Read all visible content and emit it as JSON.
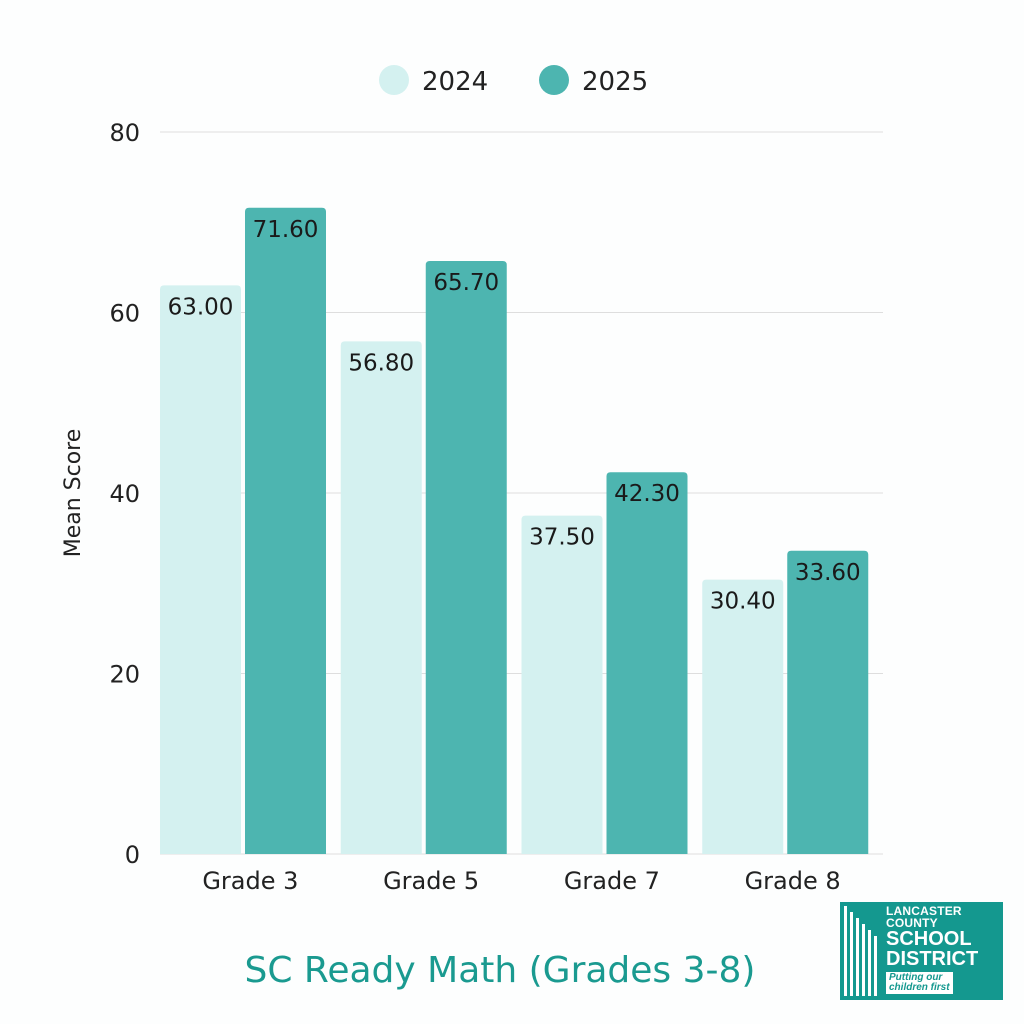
{
  "chart_data": {
    "type": "bar",
    "title": "SC Ready Math (Grades 3-8)",
    "xlabel": "",
    "ylabel": "Mean Score",
    "ylim": [
      0,
      80
    ],
    "yticks": [
      0,
      20,
      40,
      60,
      80
    ],
    "grid": true,
    "legend_position": "top-center",
    "categories": [
      "Grade 3",
      "Grade 5",
      "Grade 7",
      "Grade 8"
    ],
    "series": [
      {
        "name": "2024",
        "color": "#d4f1f0",
        "values": [
          63.0,
          56.8,
          37.5,
          30.4
        ],
        "labels": [
          "63.00",
          "56.80",
          "37.50",
          "30.40"
        ]
      },
      {
        "name": "2025",
        "color": "#4db5b0",
        "values": [
          71.6,
          65.7,
          42.3,
          33.6
        ],
        "labels": [
          "71.60",
          "65.70",
          "42.30",
          "33.60"
        ]
      }
    ]
  },
  "logo": {
    "line1": "LANCASTER",
    "line2": "COUNTY",
    "line3": "SCHOOL",
    "line4": "DISTRICT",
    "tagline1": "Putting our",
    "tagline2": "children first",
    "color": "#14988f"
  }
}
